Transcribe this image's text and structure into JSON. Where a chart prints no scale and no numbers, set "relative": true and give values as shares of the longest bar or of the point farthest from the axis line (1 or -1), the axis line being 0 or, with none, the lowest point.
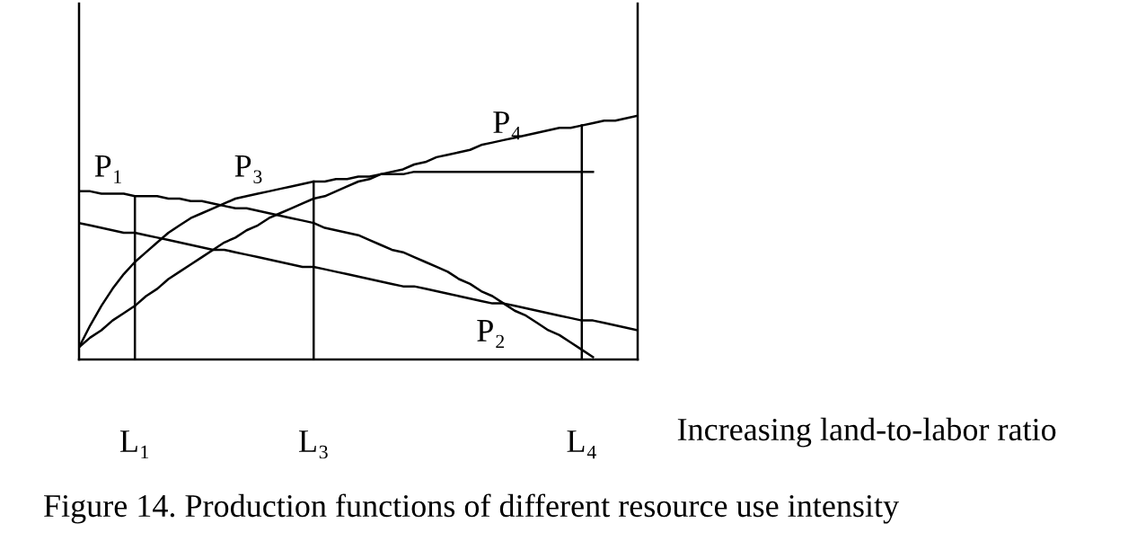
{
  "chart_data": {
    "type": "line",
    "relative": true,
    "xlabel": "Increasing land-to-labor ratio",
    "categories": [
      null,
      null,
      null,
      null,
      null,
      "L₁",
      null,
      null,
      null,
      null,
      null,
      null,
      null,
      null,
      null,
      null,
      null,
      null,
      null,
      null,
      null,
      "L₃",
      null,
      null,
      null,
      null,
      null,
      null,
      null,
      null,
      null,
      null,
      null,
      null,
      null,
      null,
      null,
      null,
      null,
      null,
      null,
      null,
      null,
      null,
      null,
      "L₄",
      null,
      null,
      null,
      null,
      null
    ],
    "tick_labels": "x",
    "series": [
      {
        "name": "P₁",
        "color": "#000000",
        "values": [
          0.69,
          0.69,
          0.68,
          0.68,
          0.68,
          0.67,
          0.67,
          0.67,
          0.66,
          0.66,
          0.65,
          0.65,
          0.64,
          0.63,
          0.62,
          0.62,
          0.61,
          0.6,
          0.59,
          0.58,
          0.57,
          0.56,
          0.54,
          0.53,
          0.52,
          0.51,
          0.49,
          0.47,
          0.45,
          0.44,
          0.42,
          0.4,
          0.38,
          0.36,
          0.33,
          0.31,
          0.28,
          0.26,
          0.23,
          0.2,
          0.18,
          0.15,
          0.12,
          0.1,
          0.07,
          0.04,
          0.01,
          null,
          null,
          null,
          null
        ]
      },
      {
        "name": "P₂",
        "color": "#000000",
        "values": [
          0.56,
          0.55,
          0.54,
          0.53,
          0.52,
          0.52,
          0.51,
          0.5,
          0.49,
          0.48,
          0.47,
          0.46,
          0.45,
          0.45,
          0.44,
          0.43,
          0.42,
          0.41,
          0.4,
          0.39,
          0.38,
          0.38,
          0.37,
          0.36,
          0.35,
          0.34,
          0.33,
          0.32,
          0.31,
          0.3,
          0.3,
          0.29,
          0.28,
          0.27,
          0.26,
          0.25,
          0.24,
          0.23,
          0.23,
          0.22,
          0.21,
          0.2,
          0.19,
          0.18,
          0.17,
          0.16,
          0.16,
          0.15,
          0.14,
          0.13,
          0.12
        ]
      },
      {
        "name": "P₃",
        "color": "#000000",
        "values": [
          0.05,
          0.14,
          0.22,
          0.29,
          0.35,
          0.4,
          0.44,
          0.48,
          0.52,
          0.55,
          0.58,
          0.6,
          0.62,
          0.64,
          0.66,
          0.67,
          0.68,
          0.69,
          0.7,
          0.71,
          0.72,
          0.73,
          0.73,
          0.74,
          0.74,
          0.75,
          0.75,
          0.76,
          0.76,
          0.76,
          0.77,
          0.77,
          0.77,
          0.77,
          0.77,
          0.77,
          0.77,
          0.77,
          0.77,
          0.77,
          0.77,
          0.77,
          0.77,
          0.77,
          0.77,
          0.77,
          0.77,
          null,
          null,
          null,
          null
        ]
      },
      {
        "name": "P₄",
        "color": "#000000",
        "values": [
          0.05,
          0.09,
          0.12,
          0.16,
          0.19,
          0.22,
          0.26,
          0.29,
          0.33,
          0.36,
          0.39,
          0.42,
          0.45,
          0.48,
          0.5,
          0.53,
          0.55,
          0.58,
          0.6,
          0.62,
          0.64,
          0.66,
          0.67,
          0.69,
          0.71,
          0.73,
          0.74,
          0.76,
          0.77,
          0.78,
          0.8,
          0.81,
          0.83,
          0.84,
          0.85,
          0.86,
          0.88,
          0.89,
          0.9,
          0.91,
          0.92,
          0.93,
          0.94,
          0.95,
          0.95,
          0.96,
          0.97,
          0.98,
          0.98,
          0.99,
          1.0
        ]
      }
    ],
    "ref_lines": [
      {
        "axis": "x",
        "value": "L₁"
      },
      {
        "axis": "x",
        "value": "L₃"
      },
      {
        "axis": "x",
        "value": "L₄"
      }
    ],
    "annotations": [
      "Figure 14. Production functions of different resource use intensity"
    ]
  }
}
